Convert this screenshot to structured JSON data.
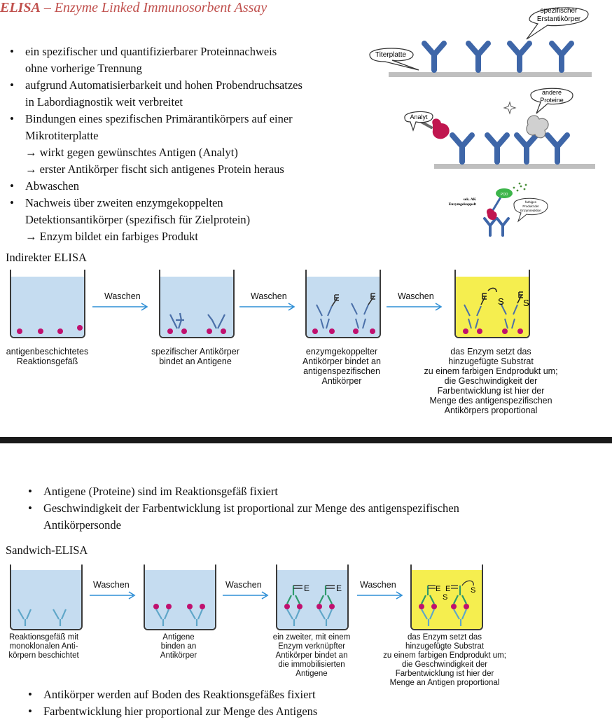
{
  "title": {
    "abbr": "ELISA",
    "rest": " – Enzyme Linked Immunosorbent Assay"
  },
  "bullets_top": [
    {
      "text": "ein spezifischer und quantifizierbarer Proteinnachweis",
      "sub": [
        "ohne vorherige Trennung"
      ]
    },
    {
      "text": "aufgrund Automatisierbarkeit und hohen Probendruchsatzes",
      "sub": [
        "in Labordiagnostik weit verbreitet"
      ]
    },
    {
      "text": "Bindungen eines spezifischen Primärantikörpers auf einer",
      "sub": [
        "Mikrotiterplatte",
        "→ wirkt gegen gewünschtes Antigen (Analyt)",
        "→ erster Antikörper fischt sich antigenes Protein heraus"
      ]
    },
    {
      "text": "Abwaschen",
      "sub": []
    },
    {
      "text": "Nachweis über zweiten enzymgekoppelten",
      "sub": [
        "Detektionsantikörper (spezifisch für Zielprotein)",
        "→ Enzym bildet ein farbiges Produkt"
      ]
    }
  ],
  "right_figure": {
    "bubble_top": [
      "spezifischer",
      "Erstantikörper"
    ],
    "bubble_titerplatte": "Titerplatte",
    "bubble_andere": [
      "andere",
      "Proteine"
    ],
    "bubble_analyt": "Analyt",
    "small_label_left": [
      "sek. AK",
      "Enzymgekoppelt"
    ],
    "small_label_pod": "POD",
    "small_bubble": [
      "farbiges",
      "Produkt der",
      "Enzymreaktion"
    ]
  },
  "indirect": {
    "heading": "Indirekter ELISA",
    "wash": [
      "Waschen",
      "Waschen",
      "Waschen"
    ],
    "captions": [
      [
        "antigenbeschichtetes",
        "Reaktionsgefäß"
      ],
      [
        "spezifischer Antikörper",
        "bindet an Antigene"
      ],
      [
        "enzymgekoppelter",
        "Antikörper bindet an",
        "antigenspezifischen",
        "Antikörper"
      ],
      [
        "das Enzym setzt das",
        "hinzugefügte Substrat",
        "zu einem farbigen Endprodukt um;",
        "die Geschwindigkeit der",
        "Farbentwicklung ist hier der",
        "Menge des antigenspezifischen",
        "Antikörpers proportional"
      ]
    ]
  },
  "bullets_mid": [
    {
      "text": "Antigene (Proteine) sind im Reaktionsgefäß fixiert",
      "sub": []
    },
    {
      "text": "Geschwindigkeit der Farbentwicklung ist proportional zur Menge des antigenspezifischen",
      "sub": [
        "Antikörpersonde"
      ]
    }
  ],
  "sandwich": {
    "heading": "Sandwich-ELISA",
    "wash": [
      "Waschen",
      "Waschen",
      "Waschen"
    ],
    "captions": [
      [
        "Reaktionsgefäß mit",
        "monoklonalen Anti-",
        "körpern beschichtet"
      ],
      [
        "Antigene",
        "binden an",
        "Antikörper"
      ],
      [
        "ein zweiter, mit einem",
        "Enzym verknüpfter",
        "Antikörper bindet an",
        "die immobilisierten",
        "Antigene"
      ],
      [
        "das Enzym setzt das",
        "hinzugefügte Substrat",
        "zu einem farbigen Endprodukt um;",
        "die Geschwindigkeit der",
        "Farbentwicklung ist hier der",
        "Menge an Antigen proportional"
      ]
    ]
  },
  "bullets_bottom": [
    {
      "text": "Antikörper werden auf Boden des Reaktionsgefäßes fixiert",
      "sub": []
    },
    {
      "text": "Farbentwicklung hier proportional zur Menge des Antigens",
      "sub": []
    }
  ],
  "colors": {
    "title": "#c0504d",
    "liquid_blue": "#c5dcf0",
    "liquid_yellow": "#f5ee4f",
    "antigen": "#c0106e",
    "antibody": "#4a6fa8",
    "arrow": "#2f8fd6"
  }
}
